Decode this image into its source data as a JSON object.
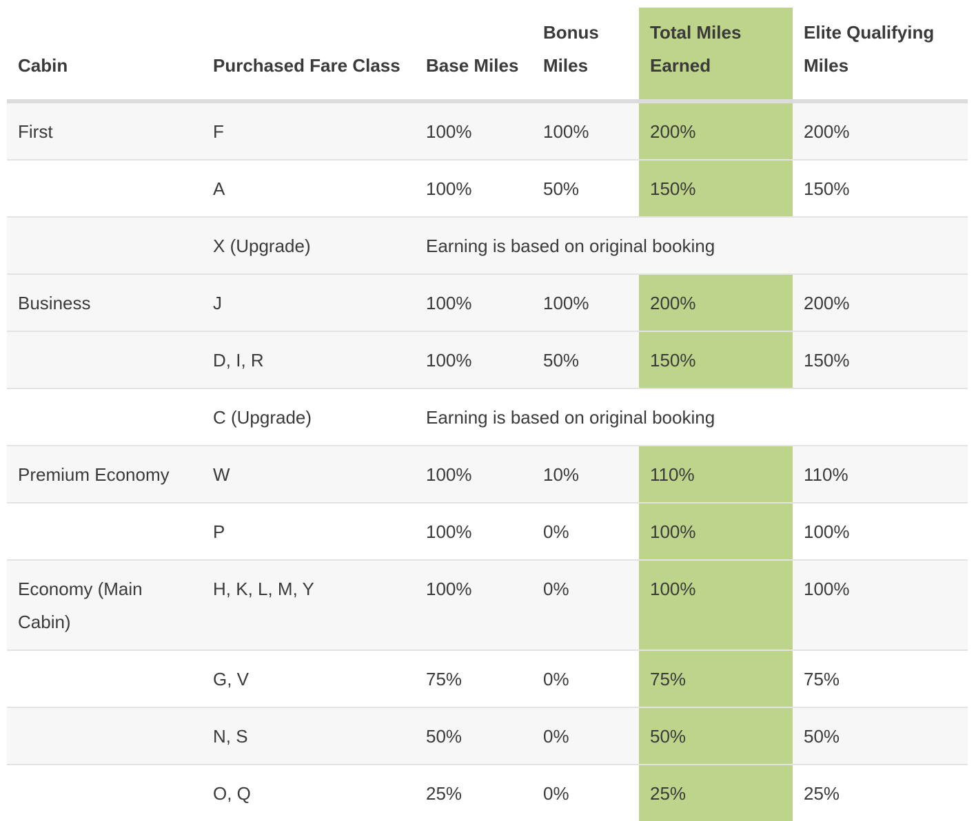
{
  "columns": [
    "Cabin",
    "Purchased Fare Class",
    "Base Miles",
    "Bonus Miles",
    "Total Miles Earned",
    "Elite Qualifying Miles"
  ],
  "rows": [
    {
      "cabin": "First",
      "fare": "F",
      "base": "100%",
      "bonus": "100%",
      "total": "200%",
      "elite": "200%"
    },
    {
      "cabin": "",
      "fare": "A",
      "base": "100%",
      "bonus": "50%",
      "total": "150%",
      "elite": "150%"
    },
    {
      "cabin": "",
      "fare": "X (Upgrade)",
      "note": "Earning is based on original booking"
    },
    {
      "cabin": "Business",
      "fare": "J",
      "base": "100%",
      "bonus": "100%",
      "total": "200%",
      "elite": "200%"
    },
    {
      "cabin": "",
      "fare": "D, I, R",
      "base": "100%",
      "bonus": "50%",
      "total": "150%",
      "elite": "150%"
    },
    {
      "cabin": "",
      "fare": "C (Upgrade)",
      "note": "Earning is based on original booking"
    },
    {
      "cabin": "Premium Economy",
      "fare": "W",
      "base": "100%",
      "bonus": "10%",
      "total": "110%",
      "elite": "110%"
    },
    {
      "cabin": "",
      "fare": "P",
      "base": "100%",
      "bonus": "0%",
      "total": "100%",
      "elite": "100%"
    },
    {
      "cabin": "Economy (Main Cabin)",
      "fare": "H, K, L, M, Y",
      "base": "100%",
      "bonus": "0%",
      "total": "100%",
      "elite": "100%"
    },
    {
      "cabin": "",
      "fare": "G, V",
      "base": "75%",
      "bonus": "0%",
      "total": "75%",
      "elite": "75%"
    },
    {
      "cabin": "",
      "fare": "N, S",
      "base": "50%",
      "bonus": "0%",
      "total": "50%",
      "elite": "50%"
    },
    {
      "cabin": "",
      "fare": "O, Q",
      "base": "25%",
      "bonus": "0%",
      "total": "25%",
      "elite": "25%"
    }
  ],
  "colors": {
    "highlight": "#bdd48a",
    "row_shade": "#f7f7f7",
    "text": "#3a3a3a"
  }
}
